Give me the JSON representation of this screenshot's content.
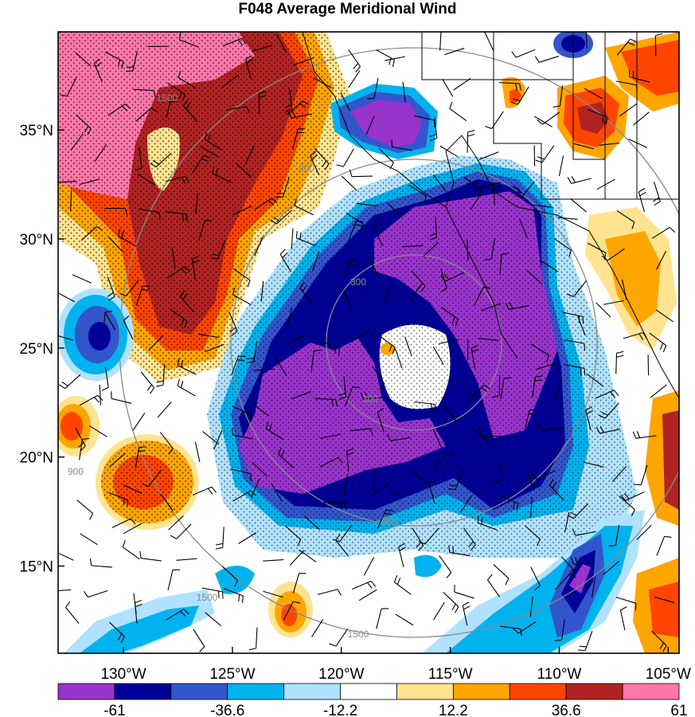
{
  "title": "F048 Average Meridional Wind",
  "map": {
    "lon_range": [
      -133.0,
      -104.5
    ],
    "lat_range": [
      11.0,
      39.5
    ],
    "lat_ticks": [
      {
        "value": 35,
        "label": "35°N"
      },
      {
        "value": 30,
        "label": "30°N"
      },
      {
        "value": 25,
        "label": "25°N"
      },
      {
        "value": 20,
        "label": "20°N"
      },
      {
        "value": 15,
        "label": "15°N"
      }
    ],
    "lon_ticks": [
      {
        "value": -130,
        "label": "130°W"
      },
      {
        "value": -125,
        "label": "125°W"
      },
      {
        "value": -120,
        "label": "120°W"
      },
      {
        "value": -115,
        "label": "115°W"
      },
      {
        "value": -110,
        "label": "110°W"
      },
      {
        "value": -105,
        "label": "105°W"
      }
    ],
    "range_ring_labels": [
      "300",
      "900",
      "1500"
    ],
    "stippling": "dotted"
  },
  "colorbar": {
    "colors": [
      "#9933cc",
      "#000099",
      "#3355cc",
      "#00b2ee",
      "#b0e2ff",
      "#ffffff",
      "#ffe38f",
      "#ffa500",
      "#ff4500",
      "#b22222",
      "#ff77aa"
    ],
    "labels": [
      "-61",
      "-36.6",
      "-12.2",
      "12.2",
      "36.6",
      "61"
    ]
  }
}
